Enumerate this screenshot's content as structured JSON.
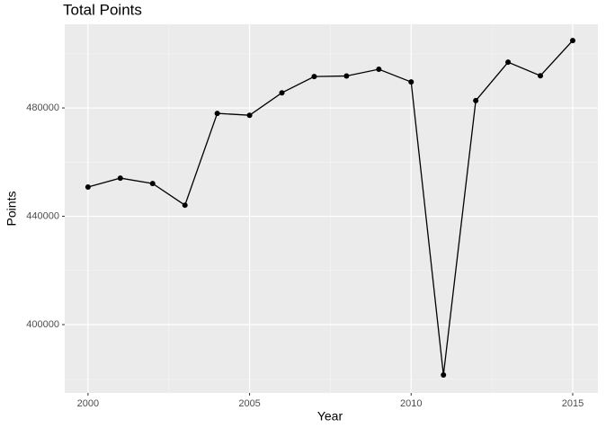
{
  "chart_data": {
    "type": "line",
    "title": "Total Points",
    "x_label": "Year",
    "y_label": "Points",
    "x": [
      2000,
      2001,
      2002,
      2003,
      2004,
      2005,
      2006,
      2007,
      2008,
      2009,
      2010,
      2011,
      2012,
      2013,
      2014,
      2015
    ],
    "series": [
      {
        "name": "Points",
        "color": "#000000",
        "values": [
          450800,
          454100,
          452100,
          444100,
          478000,
          477300,
          485600,
          491600,
          491800,
          494300,
          489600,
          381400,
          482700,
          496900,
          491900,
          504900
        ]
      }
    ],
    "xlim": [
      1999.28,
      2015.78
    ],
    "xticks": [
      2000,
      2005,
      2010,
      2015
    ],
    "ylim": [
      374770,
      510900
    ],
    "yticks": [
      400000,
      440000,
      480000
    ],
    "grid": true,
    "minor_grid": true
  }
}
